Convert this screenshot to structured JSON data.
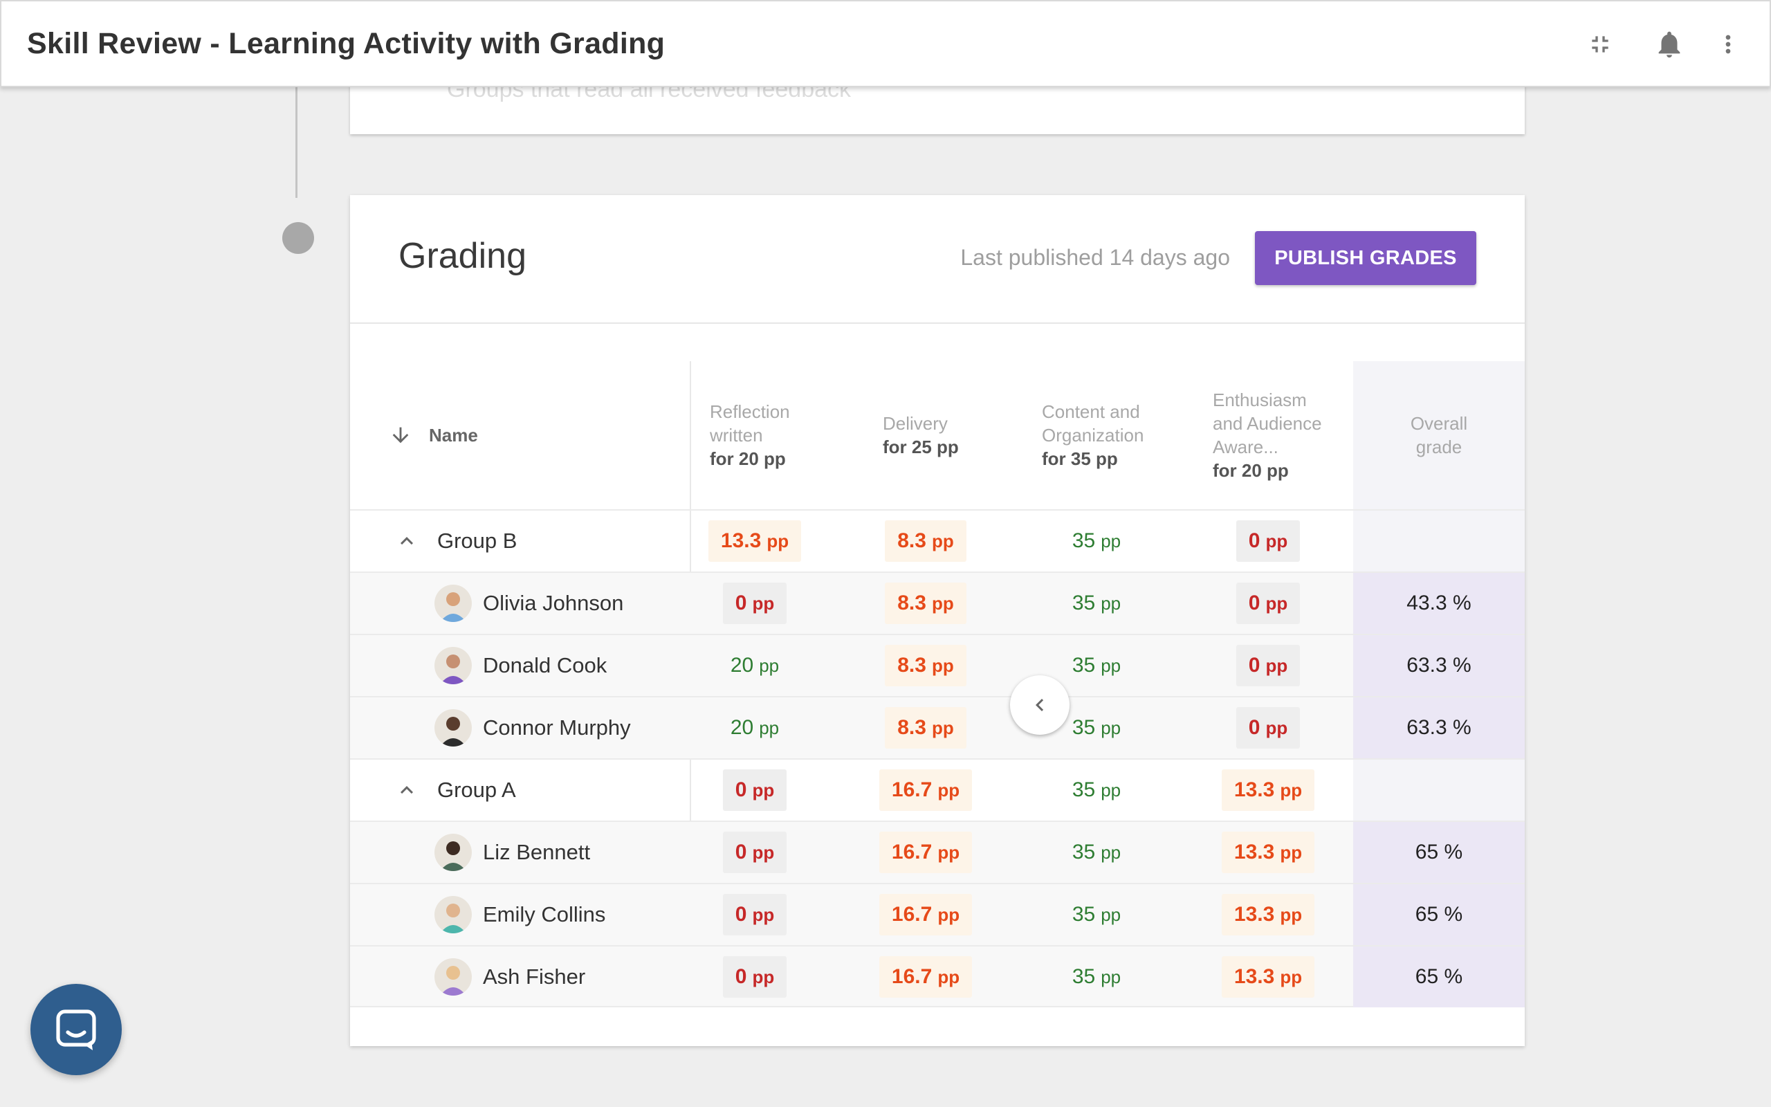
{
  "app": {
    "title": "Skill Review - Learning Activity with Grading",
    "icons": [
      "collapse-fullscreen-icon",
      "bell-icon",
      "more-vert-icon"
    ]
  },
  "previous_section": {
    "ghost_text": "Groups that read all received feedback"
  },
  "grading": {
    "title": "Grading",
    "last_published": "Last published 14 days ago",
    "publish_label": "PUBLISH GRADES",
    "accent_color": "#7e57c2"
  },
  "table": {
    "name_header": "Name",
    "columns": [
      {
        "label": "Reflection written",
        "points": "for 20 pp"
      },
      {
        "label": "Delivery",
        "points": "for 25 pp"
      },
      {
        "label": "Content and Organization",
        "points": "for 35 pp"
      },
      {
        "label": "Enthusiasm and Audience Aware...",
        "points": "for 20 pp"
      }
    ],
    "overall_header": "Overall grade",
    "unit": "pp",
    "rows": [
      {
        "type": "group",
        "name": "Group B",
        "scores": [
          "13.3",
          "8.3",
          "35",
          "0"
        ],
        "overall": ""
      },
      {
        "type": "student",
        "name": "Olivia Johnson",
        "scores": [
          "0",
          "8.3",
          "35",
          "0"
        ],
        "overall": "43.3 %"
      },
      {
        "type": "student",
        "name": "Donald Cook",
        "scores": [
          "20",
          "8.3",
          "35",
          "0"
        ],
        "overall": "63.3 %"
      },
      {
        "type": "student",
        "name": "Connor Murphy",
        "scores": [
          "20",
          "8.3",
          "35",
          "0"
        ],
        "overall": "63.3 %"
      },
      {
        "type": "group",
        "name": "Group A",
        "scores": [
          "0",
          "16.7",
          "35",
          "13.3"
        ],
        "overall": ""
      },
      {
        "type": "student",
        "name": "Liz Bennett",
        "scores": [
          "0",
          "16.7",
          "35",
          "13.3"
        ],
        "overall": "65 %"
      },
      {
        "type": "student",
        "name": "Emily Collins",
        "scores": [
          "0",
          "16.7",
          "35",
          "13.3"
        ],
        "overall": "65 %"
      },
      {
        "type": "student",
        "name": "Ash Fisher",
        "scores": [
          "0",
          "16.7",
          "35",
          "13.3"
        ],
        "overall": "65 %"
      }
    ]
  },
  "chat": {
    "icon": "chat-bubble-icon",
    "color": "#2f5e8e"
  }
}
